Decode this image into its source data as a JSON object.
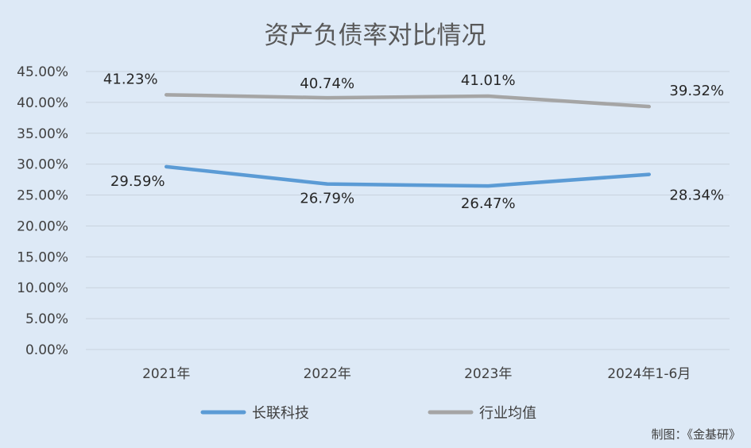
{
  "chart_data": {
    "type": "line",
    "title": "资产负债率对比情况",
    "categories": [
      "2021年",
      "2022年",
      "2023年",
      "2024年1-6月"
    ],
    "series": [
      {
        "name": "长联科技",
        "values": [
          29.59,
          26.79,
          26.47,
          28.34
        ],
        "labels": [
          "29.59%",
          "26.79%",
          "26.47%",
          "28.34%"
        ],
        "color": "#5b9bd5"
      },
      {
        "name": "行业均值",
        "values": [
          41.23,
          40.74,
          41.01,
          39.32
        ],
        "labels": [
          "41.23%",
          "40.74%",
          "41.01%",
          "39.32%"
        ],
        "color": "#a5a5a5"
      }
    ],
    "yticks": [
      "0.00%",
      "5.00%",
      "10.00%",
      "15.00%",
      "20.00%",
      "25.00%",
      "30.00%",
      "35.00%",
      "40.00%",
      "45.00%"
    ],
    "ylim": [
      0,
      45
    ],
    "grid": true,
    "legend_position": "bottom"
  },
  "credit": "制图：《金基研》"
}
